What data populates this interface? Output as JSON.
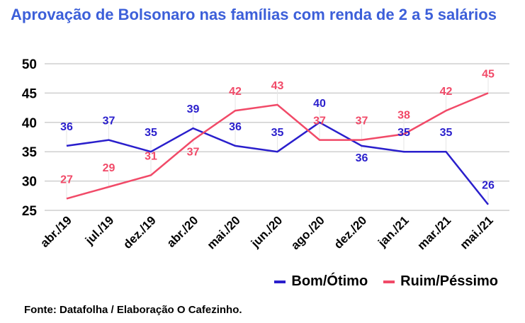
{
  "chart_data": {
    "type": "line",
    "title": "Aprovação de Bolsonaro nas famílias com renda de 2 a 5 salários",
    "categories": [
      "abr./19",
      "jul./19",
      "dez./19",
      "abr./20",
      "mai./20",
      "jun./20",
      "ago./20",
      "dez./20",
      "jan./21",
      "mar./21",
      "mai./21"
    ],
    "series": [
      {
        "name": "Bom/Ótimo",
        "color": "#2a1fcc",
        "values": [
          36,
          37,
          35,
          39,
          36,
          35,
          40,
          36,
          35,
          35,
          26
        ]
      },
      {
        "name": "Ruim/Péssimo",
        "color": "#f14a68",
        "values": [
          27,
          29,
          31,
          37,
          42,
          43,
          37,
          37,
          38,
          42,
          45
        ]
      }
    ],
    "ylim": [
      25,
      50
    ],
    "yticks": [
      25,
      30,
      35,
      40,
      45,
      50
    ],
    "grid": true,
    "legend": "bottom-right",
    "xlabel": "",
    "ylabel": ""
  },
  "source": "Fonte: Datafolha / Elaboração O Cafezinho.",
  "title_color": "#3c5fd9"
}
